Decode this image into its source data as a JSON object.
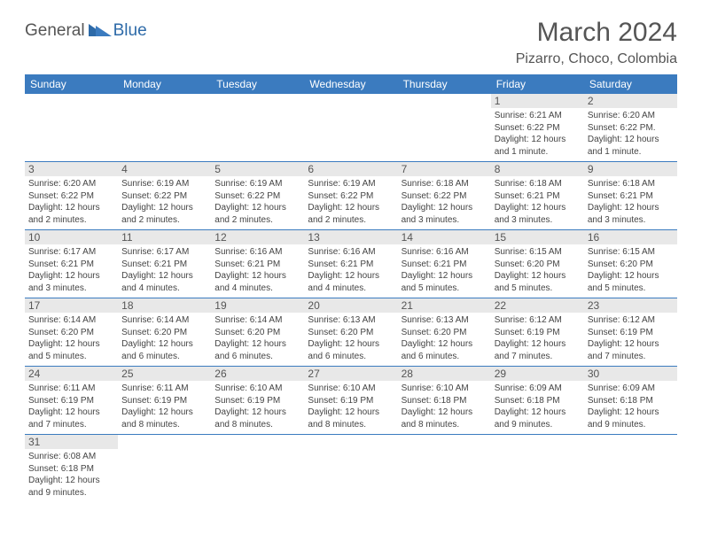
{
  "logo": {
    "general": "General",
    "blue": "Blue"
  },
  "title": "March 2024",
  "location": "Pizarro, Choco, Colombia",
  "colors": {
    "header_bg": "#3b7bbf",
    "header_text": "#ffffff",
    "daynum_bg": "#e8e8e8",
    "row_border": "#3b7bbf",
    "text": "#444444",
    "title_color": "#555555"
  },
  "dayNames": [
    "Sunday",
    "Monday",
    "Tuesday",
    "Wednesday",
    "Thursday",
    "Friday",
    "Saturday"
  ],
  "weeks": [
    [
      null,
      null,
      null,
      null,
      null,
      {
        "n": "1",
        "sr": "6:21 AM",
        "ss": "6:22 PM",
        "dl": "12 hours and 1 minute."
      },
      {
        "n": "2",
        "sr": "6:20 AM",
        "ss": "6:22 PM.",
        "dl": "12 hours and 1 minute."
      }
    ],
    [
      {
        "n": "3",
        "sr": "6:20 AM",
        "ss": "6:22 PM",
        "dl": "12 hours and 2 minutes."
      },
      {
        "n": "4",
        "sr": "6:19 AM",
        "ss": "6:22 PM",
        "dl": "12 hours and 2 minutes."
      },
      {
        "n": "5",
        "sr": "6:19 AM",
        "ss": "6:22 PM",
        "dl": "12 hours and 2 minutes."
      },
      {
        "n": "6",
        "sr": "6:19 AM",
        "ss": "6:22 PM",
        "dl": "12 hours and 2 minutes."
      },
      {
        "n": "7",
        "sr": "6:18 AM",
        "ss": "6:22 PM",
        "dl": "12 hours and 3 minutes."
      },
      {
        "n": "8",
        "sr": "6:18 AM",
        "ss": "6:21 PM",
        "dl": "12 hours and 3 minutes."
      },
      {
        "n": "9",
        "sr": "6:18 AM",
        "ss": "6:21 PM",
        "dl": "12 hours and 3 minutes."
      }
    ],
    [
      {
        "n": "10",
        "sr": "6:17 AM",
        "ss": "6:21 PM",
        "dl": "12 hours and 3 minutes."
      },
      {
        "n": "11",
        "sr": "6:17 AM",
        "ss": "6:21 PM",
        "dl": "12 hours and 4 minutes."
      },
      {
        "n": "12",
        "sr": "6:16 AM",
        "ss": "6:21 PM",
        "dl": "12 hours and 4 minutes."
      },
      {
        "n": "13",
        "sr": "6:16 AM",
        "ss": "6:21 PM",
        "dl": "12 hours and 4 minutes."
      },
      {
        "n": "14",
        "sr": "6:16 AM",
        "ss": "6:21 PM",
        "dl": "12 hours and 5 minutes."
      },
      {
        "n": "15",
        "sr": "6:15 AM",
        "ss": "6:20 PM",
        "dl": "12 hours and 5 minutes."
      },
      {
        "n": "16",
        "sr": "6:15 AM",
        "ss": "6:20 PM",
        "dl": "12 hours and 5 minutes."
      }
    ],
    [
      {
        "n": "17",
        "sr": "6:14 AM",
        "ss": "6:20 PM",
        "dl": "12 hours and 5 minutes."
      },
      {
        "n": "18",
        "sr": "6:14 AM",
        "ss": "6:20 PM",
        "dl": "12 hours and 6 minutes."
      },
      {
        "n": "19",
        "sr": "6:14 AM",
        "ss": "6:20 PM",
        "dl": "12 hours and 6 minutes."
      },
      {
        "n": "20",
        "sr": "6:13 AM",
        "ss": "6:20 PM",
        "dl": "12 hours and 6 minutes."
      },
      {
        "n": "21",
        "sr": "6:13 AM",
        "ss": "6:20 PM",
        "dl": "12 hours and 6 minutes."
      },
      {
        "n": "22",
        "sr": "6:12 AM",
        "ss": "6:19 PM",
        "dl": "12 hours and 7 minutes."
      },
      {
        "n": "23",
        "sr": "6:12 AM",
        "ss": "6:19 PM",
        "dl": "12 hours and 7 minutes."
      }
    ],
    [
      {
        "n": "24",
        "sr": "6:11 AM",
        "ss": "6:19 PM",
        "dl": "12 hours and 7 minutes."
      },
      {
        "n": "25",
        "sr": "6:11 AM",
        "ss": "6:19 PM",
        "dl": "12 hours and 8 minutes."
      },
      {
        "n": "26",
        "sr": "6:10 AM",
        "ss": "6:19 PM",
        "dl": "12 hours and 8 minutes."
      },
      {
        "n": "27",
        "sr": "6:10 AM",
        "ss": "6:19 PM",
        "dl": "12 hours and 8 minutes."
      },
      {
        "n": "28",
        "sr": "6:10 AM",
        "ss": "6:18 PM",
        "dl": "12 hours and 8 minutes."
      },
      {
        "n": "29",
        "sr": "6:09 AM",
        "ss": "6:18 PM",
        "dl": "12 hours and 9 minutes."
      },
      {
        "n": "30",
        "sr": "6:09 AM",
        "ss": "6:18 PM",
        "dl": "12 hours and 9 minutes."
      }
    ],
    [
      {
        "n": "31",
        "sr": "6:08 AM",
        "ss": "6:18 PM",
        "dl": "12 hours and 9 minutes."
      },
      null,
      null,
      null,
      null,
      null,
      null
    ]
  ],
  "labels": {
    "sunrise": "Sunrise:",
    "sunset": "Sunset:",
    "daylight": "Daylight:"
  }
}
